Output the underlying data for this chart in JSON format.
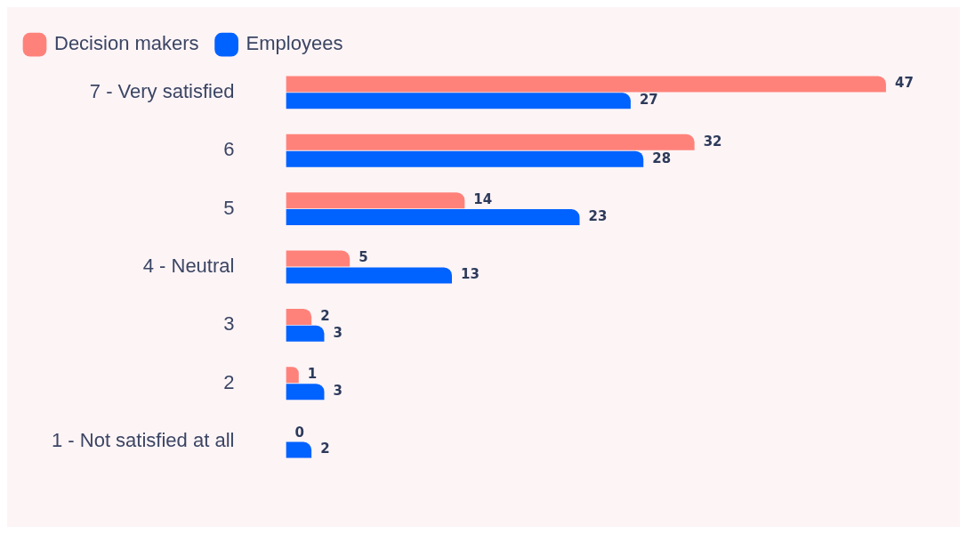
{
  "chart_data": {
    "type": "bar",
    "orientation": "horizontal",
    "categories": [
      "7 - Very satisfied",
      "6",
      "5",
      "4 - Neutral",
      "3",
      "2",
      "1 - Not satisfied at all"
    ],
    "series": [
      {
        "name": "Decision makers",
        "color": "#ff827a",
        "values": [
          47,
          32,
          14,
          5,
          2,
          1,
          0
        ]
      },
      {
        "name": "Employees",
        "color": "#0062ff",
        "values": [
          27,
          28,
          23,
          13,
          3,
          3,
          2
        ]
      }
    ],
    "data_labels": true,
    "legend": "top left",
    "tick_labels": "y"
  }
}
